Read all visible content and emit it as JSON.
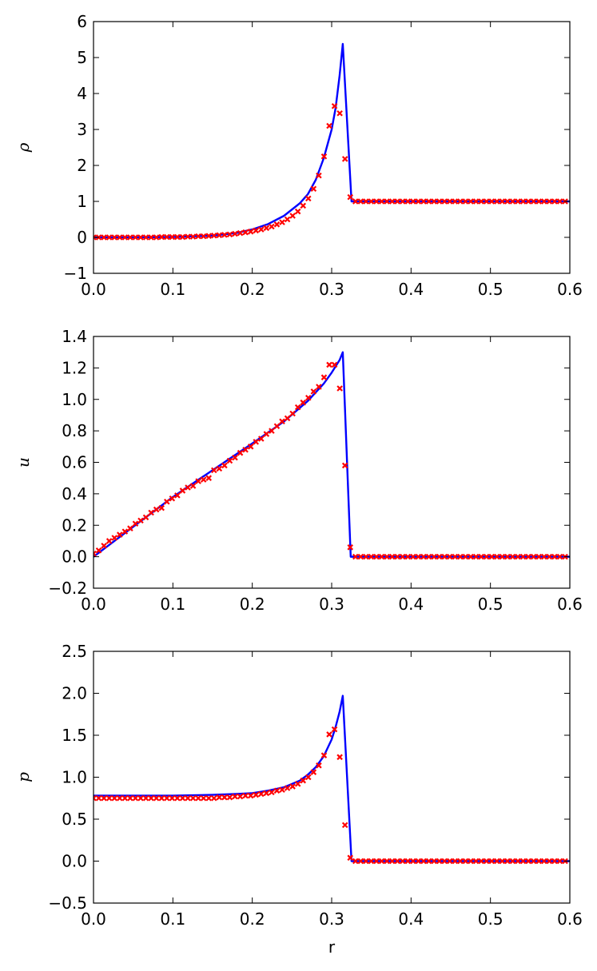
{
  "chart_data": [
    {
      "type": "line",
      "ylabel": "ρ",
      "xlabel": "",
      "xlim": [
        0.0,
        0.6
      ],
      "ylim": [
        -1,
        6
      ],
      "xticks": [
        "0.0",
        "0.1",
        "0.2",
        "0.3",
        "0.4",
        "0.5",
        "0.6"
      ],
      "yticks": [
        "−1",
        "0",
        "1",
        "2",
        "3",
        "4",
        "5",
        "6"
      ],
      "line_color": "#0000ff",
      "marker_color": "#ff0000",
      "series": [
        {
          "style": "line",
          "x": [
            0.0,
            0.05,
            0.1,
            0.15,
            0.18,
            0.2,
            0.22,
            0.24,
            0.26,
            0.27,
            0.28,
            0.29,
            0.3,
            0.305,
            0.31,
            0.314,
            0.325,
            0.33,
            0.6
          ],
          "y": [
            0.0,
            0.0,
            0.01,
            0.05,
            0.12,
            0.22,
            0.37,
            0.6,
            0.95,
            1.2,
            1.6,
            2.2,
            3.0,
            3.6,
            4.5,
            5.38,
            1.0,
            1.0,
            1.0
          ]
        },
        {
          "style": "markers",
          "marker": "x",
          "x": [
            0.0,
            0.0066,
            0.0132,
            0.0198,
            0.0264,
            0.033,
            0.0396,
            0.0462,
            0.0528,
            0.0594,
            0.066,
            0.0726,
            0.0792,
            0.0858,
            0.0924,
            0.099,
            0.1056,
            0.1122,
            0.1188,
            0.1254,
            0.132,
            0.1386,
            0.1452,
            0.1518,
            0.1584,
            0.165,
            0.1716,
            0.1782,
            0.1848,
            0.1914,
            0.198,
            0.2046,
            0.2112,
            0.2178,
            0.2244,
            0.231,
            0.2376,
            0.2442,
            0.2508,
            0.2574,
            0.264,
            0.2706,
            0.2772,
            0.2838,
            0.2904,
            0.297,
            0.3036,
            0.3102,
            0.3168,
            0.3234,
            0.33,
            0.3366,
            0.3432,
            0.3498,
            0.3564,
            0.363,
            0.3696,
            0.3762,
            0.3828,
            0.3894,
            0.396,
            0.4026,
            0.4092,
            0.4158,
            0.4224,
            0.429,
            0.4356,
            0.4422,
            0.4488,
            0.4554,
            0.462,
            0.4686,
            0.4752,
            0.4818,
            0.4884,
            0.495,
            0.5016,
            0.5082,
            0.5148,
            0.5214,
            0.528,
            0.5346,
            0.5412,
            0.5478,
            0.5544,
            0.561,
            0.5676,
            0.5742,
            0.5808,
            0.5874,
            0.594
          ],
          "y": [
            0.0,
            0.0,
            0.0,
            0.0,
            0.0,
            0.0,
            0.0,
            0.0,
            0.0,
            0.0,
            0.0,
            0.0,
            0.0,
            0.01,
            0.01,
            0.01,
            0.01,
            0.01,
            0.02,
            0.02,
            0.03,
            0.03,
            0.04,
            0.05,
            0.06,
            0.07,
            0.08,
            0.1,
            0.12,
            0.14,
            0.16,
            0.19,
            0.22,
            0.26,
            0.3,
            0.36,
            0.42,
            0.5,
            0.6,
            0.72,
            0.88,
            1.08,
            1.35,
            1.72,
            2.25,
            3.1,
            3.65,
            3.45,
            2.18,
            1.12,
            1.0,
            1.0,
            1.0,
            1.0,
            1.0,
            1.0,
            1.0,
            1.0,
            1.0,
            1.0,
            1.0,
            1.0,
            1.0,
            1.0,
            1.0,
            1.0,
            1.0,
            1.0,
            1.0,
            1.0,
            1.0,
            1.0,
            1.0,
            1.0,
            1.0,
            1.0,
            1.0,
            1.0,
            1.0,
            1.0,
            1.0,
            1.0,
            1.0,
            1.0,
            1.0,
            1.0,
            1.0,
            1.0,
            1.0,
            1.0,
            1.0
          ]
        }
      ]
    },
    {
      "type": "line",
      "ylabel": "u",
      "xlabel": "",
      "xlim": [
        0.0,
        0.6
      ],
      "ylim": [
        -0.2,
        1.4
      ],
      "xticks": [
        "0.0",
        "0.1",
        "0.2",
        "0.3",
        "0.4",
        "0.5",
        "0.6"
      ],
      "yticks": [
        "−0.2",
        "0.0",
        "0.2",
        "0.4",
        "0.6",
        "0.8",
        "1.0",
        "1.2",
        "1.4"
      ],
      "line_color": "#0000ff",
      "marker_color": "#ff0000",
      "series": [
        {
          "style": "line",
          "x": [
            0.0,
            0.05,
            0.1,
            0.15,
            0.2,
            0.24,
            0.27,
            0.29,
            0.3,
            0.31,
            0.314,
            0.324,
            0.33,
            0.6
          ],
          "y": [
            0.0,
            0.19,
            0.38,
            0.55,
            0.72,
            0.86,
            0.99,
            1.1,
            1.17,
            1.25,
            1.3,
            0.0,
            0.0,
            0.0
          ]
        },
        {
          "style": "markers",
          "marker": "x",
          "x": [
            0.0,
            0.0066,
            0.0132,
            0.0198,
            0.0264,
            0.033,
            0.0396,
            0.0462,
            0.0528,
            0.0594,
            0.066,
            0.0726,
            0.0792,
            0.0858,
            0.0924,
            0.099,
            0.1056,
            0.1122,
            0.1188,
            0.1254,
            0.132,
            0.1386,
            0.1452,
            0.1518,
            0.1584,
            0.165,
            0.1716,
            0.1782,
            0.1848,
            0.1914,
            0.198,
            0.2046,
            0.2112,
            0.2178,
            0.2244,
            0.231,
            0.2376,
            0.2442,
            0.2508,
            0.2574,
            0.264,
            0.2706,
            0.2772,
            0.2838,
            0.2904,
            0.297,
            0.3036,
            0.3102,
            0.3168,
            0.3234,
            0.33,
            0.3366,
            0.3432,
            0.3498,
            0.3564,
            0.363,
            0.3696,
            0.3762,
            0.3828,
            0.3894,
            0.396,
            0.4026,
            0.4092,
            0.4158,
            0.4224,
            0.429,
            0.4356,
            0.4422,
            0.4488,
            0.4554,
            0.462,
            0.4686,
            0.4752,
            0.4818,
            0.4884,
            0.495,
            0.5016,
            0.5082,
            0.5148,
            0.5214,
            0.528,
            0.5346,
            0.5412,
            0.5478,
            0.5544,
            0.561,
            0.5676,
            0.5742,
            0.5808,
            0.5874,
            0.594
          ],
          "y": [
            0.02,
            0.04,
            0.07,
            0.1,
            0.12,
            0.14,
            0.16,
            0.18,
            0.21,
            0.23,
            0.25,
            0.28,
            0.3,
            0.31,
            0.35,
            0.37,
            0.39,
            0.42,
            0.44,
            0.45,
            0.48,
            0.49,
            0.5,
            0.55,
            0.56,
            0.58,
            0.61,
            0.63,
            0.66,
            0.68,
            0.7,
            0.73,
            0.75,
            0.78,
            0.8,
            0.83,
            0.86,
            0.88,
            0.91,
            0.95,
            0.98,
            1.01,
            1.05,
            1.08,
            1.14,
            1.22,
            1.22,
            1.07,
            0.58,
            0.06,
            0.0,
            0.0,
            0.0,
            0.0,
            0.0,
            0.0,
            0.0,
            0.0,
            0.0,
            0.0,
            0.0,
            0.0,
            0.0,
            0.0,
            0.0,
            0.0,
            0.0,
            0.0,
            0.0,
            0.0,
            0.0,
            0.0,
            0.0,
            0.0,
            0.0,
            0.0,
            0.0,
            0.0,
            0.0,
            0.0,
            0.0,
            0.0,
            0.0,
            0.0,
            0.0,
            0.0,
            0.0,
            0.0,
            0.0,
            0.0,
            0.0
          ]
        }
      ]
    },
    {
      "type": "line",
      "ylabel": "p",
      "xlabel": "r",
      "xlim": [
        0.0,
        0.6
      ],
      "ylim": [
        -0.5,
        2.5
      ],
      "xticks": [
        "0.0",
        "0.1",
        "0.2",
        "0.3",
        "0.4",
        "0.5",
        "0.6"
      ],
      "yticks": [
        "−0.5",
        "0.0",
        "0.5",
        "1.0",
        "1.5",
        "2.0",
        "2.5"
      ],
      "line_color": "#0000ff",
      "marker_color": "#ff0000",
      "series": [
        {
          "style": "line",
          "x": [
            0.0,
            0.1,
            0.15,
            0.18,
            0.2,
            0.22,
            0.24,
            0.26,
            0.27,
            0.28,
            0.29,
            0.3,
            0.305,
            0.31,
            0.314,
            0.325,
            0.33,
            0.6
          ],
          "y": [
            0.78,
            0.78,
            0.79,
            0.8,
            0.81,
            0.84,
            0.88,
            0.96,
            1.03,
            1.12,
            1.25,
            1.45,
            1.6,
            1.78,
            1.97,
            0.0,
            0.0,
            0.0
          ]
        },
        {
          "style": "markers",
          "marker": "x",
          "x": [
            0.0,
            0.0066,
            0.0132,
            0.0198,
            0.0264,
            0.033,
            0.0396,
            0.0462,
            0.0528,
            0.0594,
            0.066,
            0.0726,
            0.0792,
            0.0858,
            0.0924,
            0.099,
            0.1056,
            0.1122,
            0.1188,
            0.1254,
            0.132,
            0.1386,
            0.1452,
            0.1518,
            0.1584,
            0.165,
            0.1716,
            0.1782,
            0.1848,
            0.1914,
            0.198,
            0.2046,
            0.2112,
            0.2178,
            0.2244,
            0.231,
            0.2376,
            0.2442,
            0.2508,
            0.2574,
            0.264,
            0.2706,
            0.2772,
            0.2838,
            0.2904,
            0.297,
            0.3036,
            0.3102,
            0.3168,
            0.3234,
            0.33,
            0.3366,
            0.3432,
            0.3498,
            0.3564,
            0.363,
            0.3696,
            0.3762,
            0.3828,
            0.3894,
            0.396,
            0.4026,
            0.4092,
            0.4158,
            0.4224,
            0.429,
            0.4356,
            0.4422,
            0.4488,
            0.4554,
            0.462,
            0.4686,
            0.4752,
            0.4818,
            0.4884,
            0.495,
            0.5016,
            0.5082,
            0.5148,
            0.5214,
            0.528,
            0.5346,
            0.5412,
            0.5478,
            0.5544,
            0.561,
            0.5676,
            0.5742,
            0.5808,
            0.5874,
            0.594
          ],
          "y": [
            0.75,
            0.75,
            0.75,
            0.75,
            0.75,
            0.75,
            0.75,
            0.75,
            0.75,
            0.75,
            0.75,
            0.75,
            0.75,
            0.75,
            0.75,
            0.75,
            0.75,
            0.75,
            0.75,
            0.75,
            0.75,
            0.75,
            0.75,
            0.75,
            0.76,
            0.76,
            0.76,
            0.77,
            0.77,
            0.78,
            0.78,
            0.79,
            0.8,
            0.81,
            0.82,
            0.84,
            0.85,
            0.87,
            0.89,
            0.92,
            0.96,
            1.0,
            1.06,
            1.14,
            1.26,
            1.51,
            1.57,
            1.24,
            0.43,
            0.04,
            0.0,
            0.0,
            0.0,
            0.0,
            0.0,
            0.0,
            0.0,
            0.0,
            0.0,
            0.0,
            0.0,
            0.0,
            0.0,
            0.0,
            0.0,
            0.0,
            0.0,
            0.0,
            0.0,
            0.0,
            0.0,
            0.0,
            0.0,
            0.0,
            0.0,
            0.0,
            0.0,
            0.0,
            0.0,
            0.0,
            0.0,
            0.0,
            0.0,
            0.0,
            0.0,
            0.0,
            0.0,
            0.0,
            0.0,
            0.0,
            0.0
          ]
        }
      ]
    }
  ]
}
